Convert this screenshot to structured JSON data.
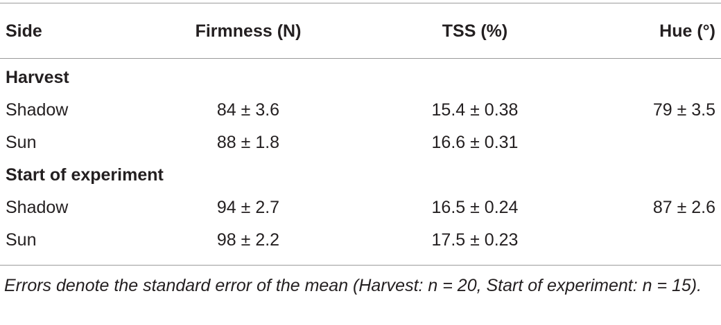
{
  "table": {
    "header": [
      "Side",
      "Firmness (N)",
      "TSS (%)",
      "Hue (°)"
    ],
    "sections": [
      {
        "title": "Harvest",
        "rows": [
          [
            "Shadow",
            "84 ± 3.6",
            "15.4 ± 0.38",
            "79 ± 3.5"
          ],
          [
            "Sun",
            "88 ± 1.8",
            "16.6 ± 0.31"
          ]
        ]
      },
      {
        "title": "Start of experiment",
        "rows": [
          [
            "Shadow",
            "94 ± 2.7",
            "16.5 ± 0.24",
            "87 ± 2.6"
          ],
          [
            "Sun",
            "98 ± 2.2",
            "17.5 ± 0.23"
          ]
        ]
      }
    ],
    "footnote": "Errors denote the standard error of the mean (Harvest: n = 20, Start of experiment: n = 15)."
  }
}
